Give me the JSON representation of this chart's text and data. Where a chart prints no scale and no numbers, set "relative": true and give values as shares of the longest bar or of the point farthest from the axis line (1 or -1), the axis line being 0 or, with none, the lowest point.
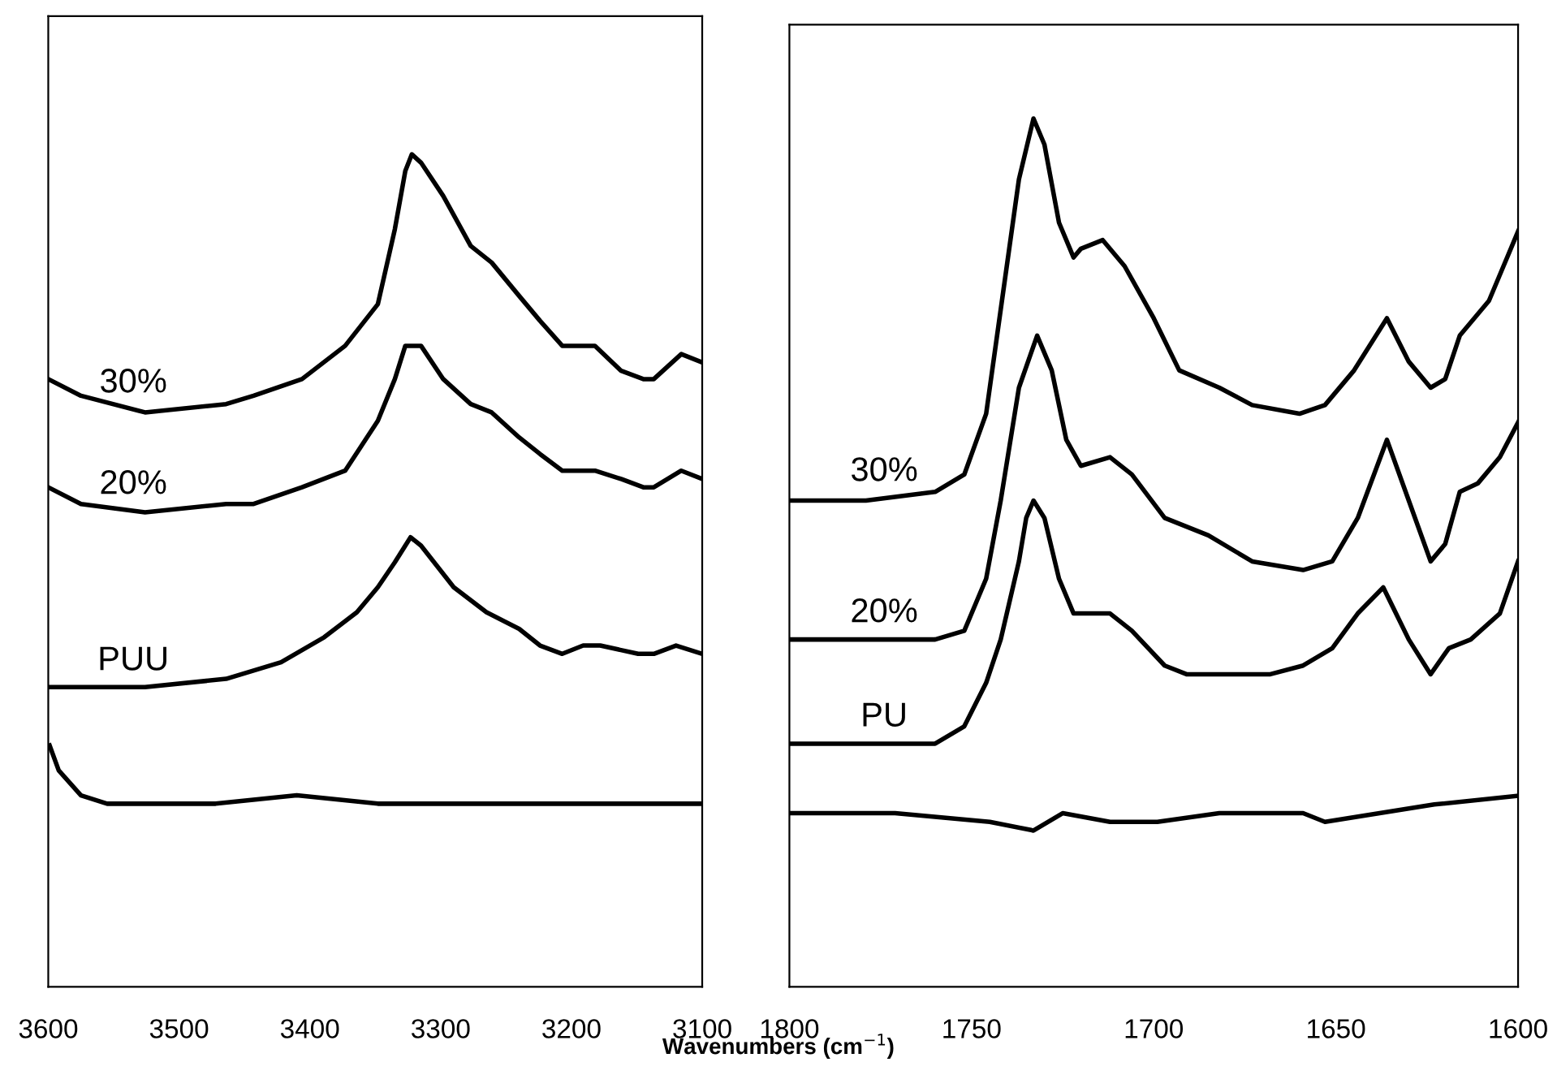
{
  "chart_data": [
    {
      "type": "line",
      "relative": true,
      "xlabel": "Wavenumbers (cm$^{−1}$)",
      "xlim": [
        3600,
        3100
      ],
      "xticks": [
        3600,
        3500,
        3400,
        3300,
        3200,
        3100
      ],
      "grid": false,
      "tick_labels": "x",
      "series": [
        {
          "name": "30%",
          "color": "#000000",
          "x": [
            3600,
            3575,
            3526,
            3464,
            3443,
            3406,
            3373,
            3348,
            3335,
            3327,
            3322,
            3315,
            3298,
            3277,
            3261,
            3240,
            3224,
            3207,
            3191,
            3182,
            3162,
            3145,
            3137,
            3116,
            3100
          ],
          "values": [
            0.73,
            0.71,
            0.69,
            0.7,
            0.71,
            0.73,
            0.77,
            0.82,
            0.91,
            0.98,
            1.0,
            0.99,
            0.95,
            0.89,
            0.87,
            0.83,
            0.8,
            0.77,
            0.77,
            0.77,
            0.74,
            0.73,
            0.73,
            0.76,
            0.75
          ]
        },
        {
          "name": "20%",
          "color": "#000000",
          "x": [
            3600,
            3575,
            3526,
            3464,
            3443,
            3406,
            3373,
            3348,
            3335,
            3327,
            3322,
            3315,
            3298,
            3277,
            3261,
            3240,
            3224,
            3207,
            3191,
            3182,
            3162,
            3145,
            3137,
            3116,
            3100
          ],
          "values": [
            0.6,
            0.58,
            0.57,
            0.58,
            0.58,
            0.6,
            0.62,
            0.68,
            0.73,
            0.77,
            0.77,
            0.77,
            0.73,
            0.7,
            0.69,
            0.66,
            0.64,
            0.62,
            0.62,
            0.62,
            0.61,
            0.6,
            0.6,
            0.62,
            0.61
          ]
        },
        {
          "name": "PUU",
          "color": "#000000",
          "x": [
            3600,
            3526,
            3464,
            3422,
            3389,
            3364,
            3348,
            3335,
            3323,
            3315,
            3290,
            3265,
            3240,
            3224,
            3207,
            3191,
            3178,
            3149,
            3137,
            3120,
            3100
          ],
          "values": [
            0.36,
            0.36,
            0.37,
            0.39,
            0.42,
            0.45,
            0.48,
            0.51,
            0.54,
            0.53,
            0.48,
            0.45,
            0.43,
            0.41,
            0.4,
            0.41,
            0.41,
            0.4,
            0.4,
            0.41,
            0.4
          ]
        },
        {
          "color": "#000000",
          "x": [
            3599,
            3592,
            3575,
            3555,
            3542,
            3513,
            3472,
            3410,
            3348,
            3265,
            3182,
            3141,
            3100
          ],
          "values": [
            0.29,
            0.26,
            0.23,
            0.22,
            0.22,
            0.22,
            0.22,
            0.23,
            0.22,
            0.22,
            0.22,
            0.22,
            0.22
          ]
        }
      ]
    },
    {
      "type": "line",
      "relative": true,
      "xlim": [
        1800,
        1600
      ],
      "xticks": [
        1800,
        1750,
        1700,
        1650,
        1600
      ],
      "grid": false,
      "tick_labels": "x",
      "series": [
        {
          "name": "30%",
          "color": "#000000",
          "x": [
            1800,
            1779,
            1760,
            1752,
            1746,
            1742,
            1737,
            1733,
            1730,
            1726,
            1722,
            1720,
            1714,
            1708,
            1700,
            1693,
            1682,
            1673,
            1660,
            1653,
            1645,
            1636,
            1630,
            1624,
            1620,
            1616,
            1608,
            1604,
            1600
          ],
          "values": [
            0.56,
            0.56,
            0.57,
            0.59,
            0.66,
            0.78,
            0.93,
            1.0,
            0.97,
            0.88,
            0.84,
            0.85,
            0.86,
            0.83,
            0.77,
            0.71,
            0.69,
            0.67,
            0.66,
            0.67,
            0.71,
            0.77,
            0.72,
            0.69,
            0.7,
            0.75,
            0.79,
            0.83,
            0.87
          ]
        },
        {
          "name": "20%",
          "color": "#000000",
          "x": [
            1800,
            1779,
            1760,
            1752,
            1746,
            1742,
            1737,
            1732,
            1728,
            1724,
            1720,
            1712,
            1706,
            1697,
            1685,
            1673,
            1659,
            1651,
            1644,
            1636,
            1630,
            1624,
            1620,
            1616,
            1611,
            1605,
            1600
          ],
          "values": [
            0.4,
            0.4,
            0.4,
            0.41,
            0.47,
            0.56,
            0.69,
            0.75,
            0.71,
            0.63,
            0.6,
            0.61,
            0.59,
            0.54,
            0.52,
            0.49,
            0.48,
            0.49,
            0.54,
            0.63,
            0.56,
            0.49,
            0.51,
            0.57,
            0.58,
            0.61,
            0.65
          ]
        },
        {
          "name": "PU",
          "color": "#000000",
          "x": [
            1800,
            1779,
            1760,
            1752,
            1746,
            1742,
            1737,
            1735,
            1733,
            1730,
            1726,
            1722,
            1718,
            1712,
            1706,
            1697,
            1691,
            1679,
            1668,
            1659,
            1651,
            1644,
            1637,
            1630,
            1624,
            1619,
            1613,
            1605,
            1600
          ],
          "values": [
            0.28,
            0.28,
            0.28,
            0.3,
            0.35,
            0.4,
            0.49,
            0.54,
            0.56,
            0.54,
            0.47,
            0.43,
            0.43,
            0.43,
            0.41,
            0.37,
            0.36,
            0.36,
            0.36,
            0.37,
            0.39,
            0.43,
            0.46,
            0.4,
            0.36,
            0.39,
            0.4,
            0.43,
            0.49
          ]
        },
        {
          "color": "#000000",
          "x": [
            1800,
            1771,
            1745,
            1733,
            1725,
            1712,
            1699,
            1682,
            1659,
            1653,
            1638,
            1623,
            1600
          ],
          "values": [
            0.2,
            0.2,
            0.19,
            0.18,
            0.2,
            0.19,
            0.19,
            0.2,
            0.2,
            0.19,
            0.2,
            0.21,
            0.22
          ]
        }
      ]
    }
  ]
}
